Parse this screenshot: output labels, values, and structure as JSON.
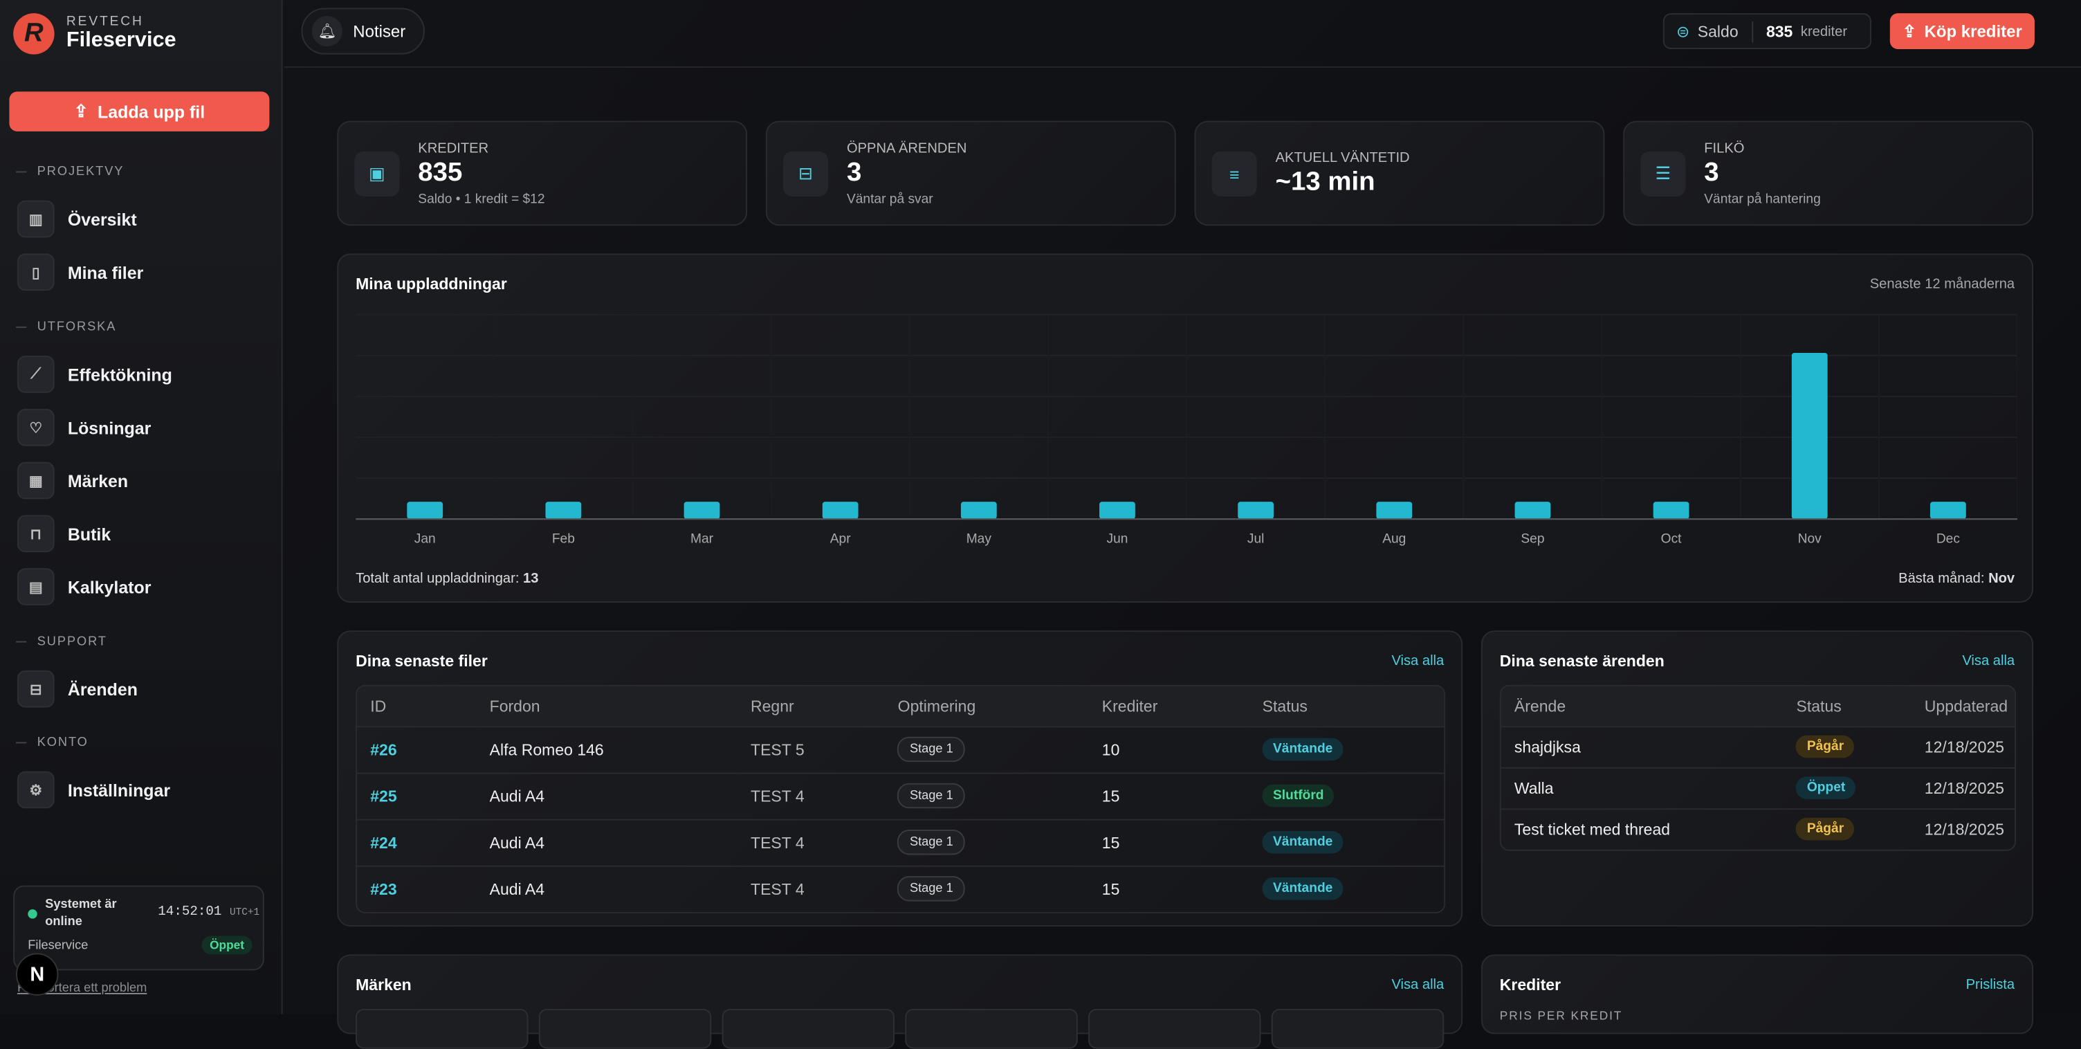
{
  "sidebar": {
    "brand_top": "REVTECH",
    "brand": "Fileservice",
    "logo_letter": "R",
    "upload": "Ladda upp fil",
    "sections": [
      {
        "title": "PROJEKTVY",
        "items": [
          {
            "label": "Översikt",
            "icon": "chart-icon"
          },
          {
            "label": "Mina filer",
            "icon": "file-icon"
          }
        ]
      },
      {
        "title": "UTFORSKA",
        "items": [
          {
            "label": "Effektökning",
            "icon": "trend-icon"
          },
          {
            "label": "Lösningar",
            "icon": "lightbulb-icon"
          },
          {
            "label": "Märken",
            "icon": "grid-icon"
          },
          {
            "label": "Butik",
            "icon": "bag-icon"
          },
          {
            "label": "Kalkylator",
            "icon": "calculator-icon"
          }
        ]
      },
      {
        "title": "SUPPORT",
        "items": [
          {
            "label": "Ärenden",
            "icon": "ticket-icon"
          }
        ]
      },
      {
        "title": "KONTO",
        "items": [
          {
            "label": "Inställningar",
            "icon": "gear-icon"
          }
        ]
      }
    ],
    "status": {
      "line1": "Systemet är",
      "line2": "online",
      "time": "14:52:01",
      "tz": "UTC+1",
      "service": "Fileservice",
      "badge": "Öppet"
    },
    "report": "Rapportera ett problem"
  },
  "header": {
    "notiser": "Notiser",
    "saldo_label": "Saldo",
    "saldo_value": "835",
    "saldo_unit": "krediter",
    "buy": "Köp krediter"
  },
  "stats": [
    {
      "label": "KREDITER",
      "value": "835",
      "sub": "Saldo • 1 kredit = $12",
      "icon": "wallet-icon"
    },
    {
      "label": "ÖPPNA ÄRENDEN",
      "value": "3",
      "sub": "Väntar på svar",
      "icon": "ticket-icon"
    },
    {
      "label": "AKTUELL VÄNTETID",
      "value": "~13 min",
      "sub": "",
      "icon": "lines-icon"
    },
    {
      "label": "FILKÖ",
      "value": "3",
      "sub": "Väntar på hantering",
      "icon": "queue-icon"
    }
  ],
  "chart_card": {
    "title": "Mina uppladdningar",
    "range": "Senaste 12 månaderna",
    "total_label": "Totalt antal uppladdningar:",
    "total": "13",
    "best_label": "Bästa månad:",
    "best": "Nov"
  },
  "chart_data": {
    "type": "bar",
    "title": "Mina uppladdningar",
    "categories": [
      "Jan",
      "Feb",
      "Mar",
      "Apr",
      "May",
      "Jun",
      "Jul",
      "Aug",
      "Sep",
      "Oct",
      "Nov",
      "Dec"
    ],
    "values": [
      0,
      0,
      0,
      0,
      0,
      0,
      0,
      0,
      0,
      0,
      13,
      0
    ],
    "ylim": [
      0,
      16
    ],
    "grid": true,
    "color": "#22b8cf"
  },
  "files": {
    "title": "Dina senaste filer",
    "link": "Visa alla",
    "columns": [
      "ID",
      "Fordon",
      "Regnr",
      "Optimering",
      "Krediter",
      "Status"
    ],
    "rows": [
      {
        "id": "#26",
        "vehicle": "Alfa Romeo 146",
        "reg": "TEST 5",
        "opt": "Stage 1",
        "credits": "10",
        "status": "Väntande",
        "kind": "wait"
      },
      {
        "id": "#25",
        "vehicle": "Audi A4",
        "reg": "TEST 4",
        "opt": "Stage 1",
        "credits": "15",
        "status": "Slutförd",
        "kind": "done"
      },
      {
        "id": "#24",
        "vehicle": "Audi A4",
        "reg": "TEST 4",
        "opt": "Stage 1",
        "credits": "15",
        "status": "Väntande",
        "kind": "wait"
      },
      {
        "id": "#23",
        "vehicle": "Audi A4",
        "reg": "TEST 4",
        "opt": "Stage 1",
        "credits": "15",
        "status": "Väntande",
        "kind": "wait"
      }
    ]
  },
  "tickets": {
    "title": "Dina senaste ärenden",
    "link": "Visa alla",
    "columns": [
      "Ärende",
      "Status",
      "Uppdaterad"
    ],
    "rows": [
      {
        "subject": "shajdjksa",
        "status": "Pågår",
        "kind": "prog",
        "updated": "12/18/2025"
      },
      {
        "subject": "Walla",
        "status": "Öppet",
        "kind": "wait",
        "updated": "12/18/2025"
      },
      {
        "subject": "Test ticket med thread",
        "status": "Pågår",
        "kind": "prog",
        "updated": "12/18/2025"
      }
    ]
  },
  "brands": {
    "title": "Märken",
    "link": "Visa alla"
  },
  "credits": {
    "title": "Krediter",
    "link": "Prislista",
    "sub": "PRIS PER KREDIT"
  }
}
